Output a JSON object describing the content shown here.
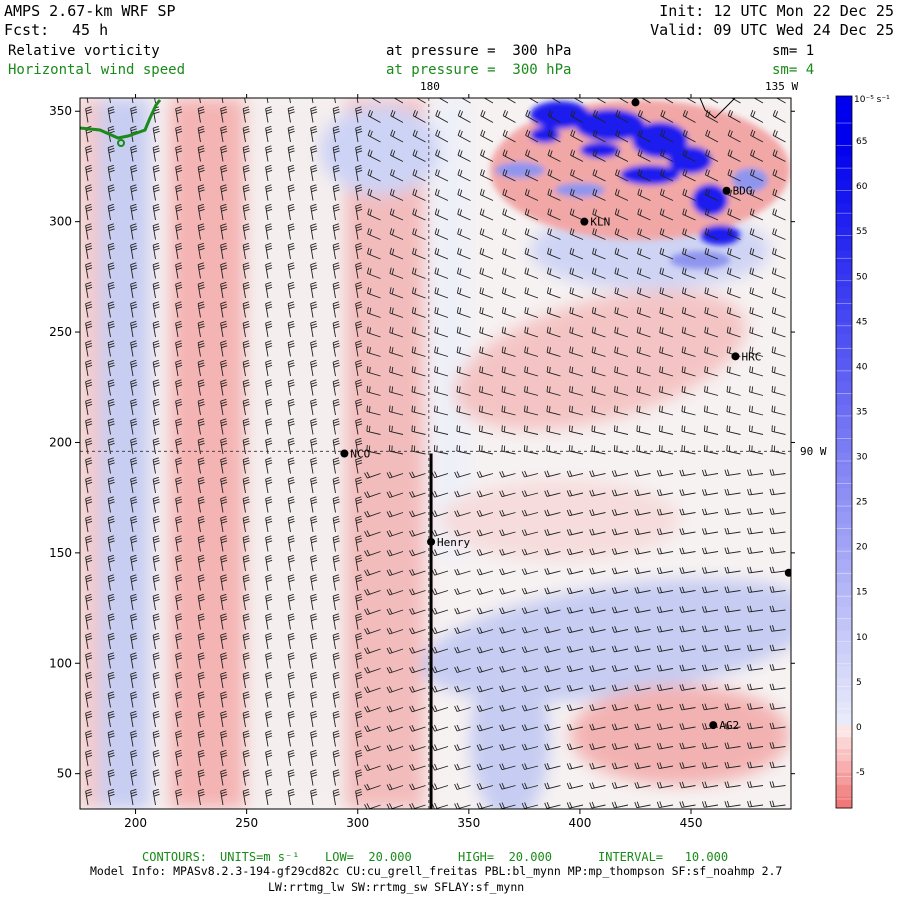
{
  "header": {
    "model_title": "AMPS 2.67-km WRF SP",
    "init": "Init: 12 UTC Mon 22 Dec 25",
    "fcst_label": "Fcst:",
    "fcst_value": "45 h",
    "valid": "Valid: 09 UTC Wed 24 Dec 25",
    "field1": "Relative vorticity",
    "field1_pressure": "at pressure =  300 hPa",
    "field1_sm": "sm= 1",
    "field2": "Horizontal wind speed",
    "field2_pressure": "at pressure =  300 hPa",
    "field2_sm": "sm= 4"
  },
  "map_labels": {
    "lon_180": "180",
    "lon_135w": "135 W",
    "lon_90w": "90 W"
  },
  "stations": [
    {
      "name": "NCO",
      "x": 294,
      "y": 195
    },
    {
      "name": "Henry",
      "x": 333,
      "y": 155
    },
    {
      "name": "KLN",
      "x": 402,
      "y": 300
    },
    {
      "name": "BDG",
      "x": 466,
      "y": 314
    },
    {
      "name": "HRC",
      "x": 470,
      "y": 239
    },
    {
      "name": "AG2",
      "x": 460,
      "y": 72
    },
    {
      "name": "",
      "x": 425,
      "y": 354
    },
    {
      "name": "",
      "x": 494,
      "y": 141
    }
  ],
  "chart_data": {
    "type": "heatmap",
    "title": "Relative vorticity at pressure = 300 hPa; Horizontal wind speed at pressure = 300 hPa",
    "xlim": [
      175,
      495
    ],
    "ylim": [
      34,
      356
    ],
    "x_ticks": [
      200,
      250,
      300,
      350,
      400,
      450
    ],
    "y_ticks": [
      50,
      100,
      150,
      200,
      250,
      300,
      350
    ],
    "colorbar": {
      "unit": "10⁻⁵ s⁻¹",
      "ticks": [
        -5,
        0,
        5,
        10,
        15,
        20,
        25,
        30,
        35,
        40,
        45,
        50,
        55,
        60,
        65
      ],
      "range": [
        -9,
        70
      ],
      "negative_color": "#f06f6f",
      "positive_color": "#0000ee"
    },
    "features": [
      {
        "label": "positive-band-west",
        "kind": "positive",
        "x": 205,
        "y": 200
      },
      {
        "label": "negative-band",
        "kind": "negative",
        "x": 240,
        "y": 200
      },
      {
        "label": "negative-band-2",
        "kind": "negative",
        "x": 325,
        "y": 200
      },
      {
        "label": "storm-top-right",
        "kind": "strong-positive",
        "x": 440,
        "y": 330
      },
      {
        "label": "positive-lower-middle",
        "kind": "positive",
        "x": 410,
        "y": 110
      },
      {
        "label": "negative-lower-right",
        "kind": "negative",
        "x": 455,
        "y": 75
      }
    ],
    "cross_section": {
      "x": 333,
      "y_start": 34,
      "y_end": 195
    },
    "reference_lines": {
      "lon_180_x": 332,
      "lat_90w_y": 196
    }
  },
  "contours_info": {
    "label": "CONTOURS:",
    "units": "UNITS=m s⁻¹",
    "low": "LOW=  20.000",
    "high": "HIGH=  20.000",
    "interval": "INTERVAL=   10.000"
  },
  "model_info": {
    "line1": "Model Info: MPASv8.2.3-194-gf29cd82c CU:cu_grell_freitas PBL:bl_mynn MP:mp_thompson SF:sf_noahmp 2.7",
    "line2": "LW:rrtmg_lw SW:rrtmg_sw SFLAY:sf_mynn"
  },
  "colors": {
    "green": "#1a8a1a",
    "coast": "#1a8a1a"
  }
}
